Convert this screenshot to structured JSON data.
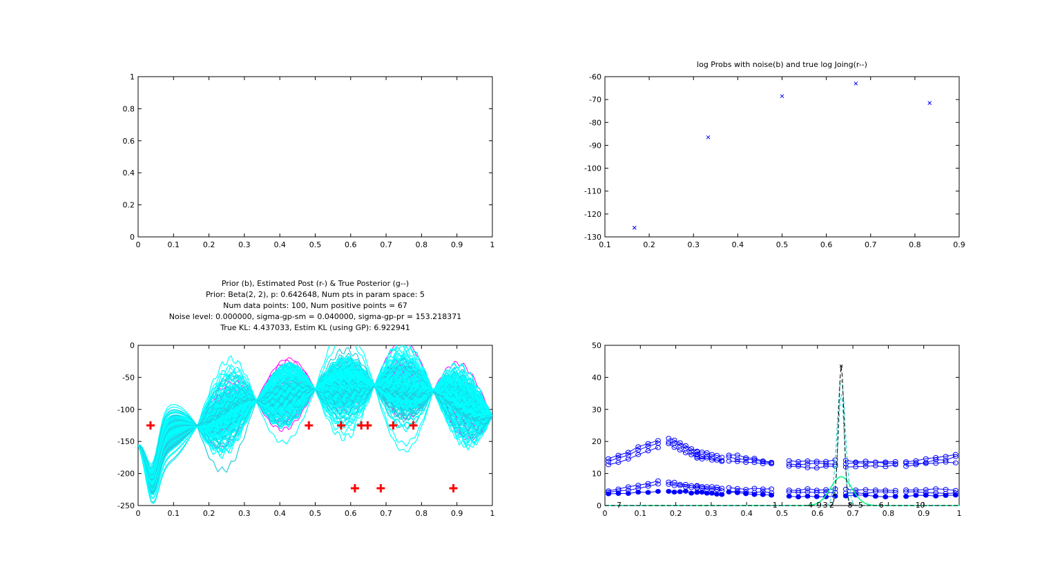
{
  "chart_data": [
    {
      "id": "top-left",
      "type": "line",
      "title": "",
      "xlim": [
        0,
        1
      ],
      "ylim": [
        0,
        1
      ],
      "xticks": [
        0,
        0.1,
        0.2,
        0.3,
        0.4,
        0.5,
        0.6,
        0.7,
        0.8,
        0.9,
        1
      ],
      "yticks": [
        0,
        0.2,
        0.4,
        0.6,
        0.8,
        1
      ],
      "xtick_labels": [
        "0",
        "0.1",
        "0.2",
        "0.3",
        "0.4",
        "0.5",
        "0.6",
        "0.7",
        "0.8",
        "0.9",
        "1"
      ],
      "ytick_labels": [
        "0",
        "0.2",
        "0.4",
        "0.6",
        "0.8",
        "1"
      ],
      "series": []
    },
    {
      "id": "top-right",
      "type": "scatter",
      "title": "log Probs with noise(b) and true log Joing(r--)",
      "xlim": [
        0.1,
        0.9
      ],
      "ylim": [
        -130,
        -60
      ],
      "xticks": [
        0.1,
        0.2,
        0.3,
        0.4,
        0.5,
        0.6,
        0.7,
        0.8,
        0.9
      ],
      "yticks": [
        -130,
        -120,
        -110,
        -100,
        -90,
        -80,
        -70,
        -60
      ],
      "xtick_labels": [
        "0.1",
        "0.2",
        "0.3",
        "0.4",
        "0.5",
        "0.6",
        "0.7",
        "0.8",
        "0.9"
      ],
      "ytick_labels": [
        "-130",
        "-120",
        "-110",
        "-100",
        "-90",
        "-80",
        "-70",
        "-60"
      ],
      "series": [
        {
          "marker": "x",
          "color": "#0000ff",
          "x": [
            0.1667,
            0.3333,
            0.5,
            0.6667,
            0.8333
          ],
          "y": [
            -126,
            -86.5,
            -68.5,
            -63,
            -71.5
          ]
        },
        {
          "marker": "dot",
          "color": "#ff0000",
          "x": [
            0.1667,
            0.3333,
            0.5,
            0.6667,
            0.8333
          ],
          "y": [
            -126,
            -86.5,
            -68.5,
            -63,
            -71.5
          ]
        }
      ]
    },
    {
      "id": "bottom-left",
      "type": "line",
      "title_lines": [
        "Prior (b), Estimated Post (r-) & True Posterior (g--)",
        "Prior: Beta(2, 2), p: 0.642648, Num pts in param space: 5",
        "Num data points: 100, Num positive points = 67",
        "Noise level: 0.000000, sigma-gp-sm = 0.040000, sigma-gp-pr = 153.218371",
        "True KL: 4.437033, Estim KL (using GP): 6.922941"
      ],
      "xlim": [
        0,
        1
      ],
      "ylim": [
        -250,
        0
      ],
      "xticks": [
        0,
        0.1,
        0.2,
        0.3,
        0.4,
        0.5,
        0.6,
        0.7,
        0.8,
        0.9,
        1
      ],
      "yticks": [
        -250,
        -200,
        -150,
        -100,
        -50,
        0
      ],
      "xtick_labels": [
        "0",
        "0.1",
        "0.2",
        "0.3",
        "0.4",
        "0.5",
        "0.6",
        "0.7",
        "0.8",
        "0.9",
        "1"
      ],
      "ytick_labels": [
        "-250",
        "-200",
        "-150",
        "-100",
        "-50",
        "0"
      ],
      "knots": [
        {
          "x": 0.0,
          "y": -150
        },
        {
          "x": 0.1667,
          "y": -126
        },
        {
          "x": 0.3333,
          "y": -86.5
        },
        {
          "x": 0.5,
          "y": -68.5
        },
        {
          "x": 0.6667,
          "y": -63
        },
        {
          "x": 0.8333,
          "y": -71.5
        },
        {
          "x": 1.0,
          "y": -110
        }
      ],
      "band_colors": {
        "magenta": "#ff00ff",
        "cyan": "#00ffff",
        "cyan_edge": "#22ccdd"
      },
      "plus_points": {
        "color": "#ff0000",
        "x": [
          0.035,
          0.482,
          0.573,
          0.63,
          0.648,
          0.72,
          0.777,
          0.612,
          0.685,
          0.89
        ],
        "y": [
          -125,
          -125,
          -125,
          -125,
          -125,
          -125,
          -125,
          -223,
          -223,
          -223
        ]
      }
    },
    {
      "id": "bottom-right",
      "type": "line",
      "title": "",
      "xlim": [
        0,
        1
      ],
      "ylim": [
        0,
        50
      ],
      "xticks": [
        0,
        0.1,
        0.2,
        0.3,
        0.4,
        0.5,
        0.6,
        0.7,
        0.8,
        0.9,
        1
      ],
      "yticks": [
        0,
        10,
        20,
        30,
        40,
        50
      ],
      "xtick_labels": [
        "0",
        "0.1",
        "0.2",
        "0.3",
        "0.4",
        "0.5",
        "0.6",
        "0.7",
        "0.8",
        "0.9",
        "1"
      ],
      "ytick_labels": [
        "0",
        "10",
        "20",
        "30",
        "40",
        "50"
      ],
      "groups": [
        {
          "x0": 0.01,
          "x1": 0.15,
          "lines": [
            [
              14.5,
              20.5
            ],
            [
              13.5,
              19.5
            ],
            [
              12.5,
              18
            ],
            [
              4.5,
              7.5
            ],
            [
              4.0,
              6.5
            ],
            [
              3.5,
              4.5
            ]
          ]
        },
        {
          "x0": 0.18,
          "x1": 0.26,
          "lines": [
            [
              21,
              17
            ],
            [
              20,
              16
            ],
            [
              19,
              15
            ],
            [
              7.5,
              6
            ],
            [
              6.5,
              5.5
            ],
            [
              4.5,
              4
            ]
          ]
        },
        {
          "x0": 0.26,
          "x1": 0.33,
          "lines": [
            [
              17,
              15
            ],
            [
              16,
              14
            ],
            [
              15,
              14
            ],
            [
              6,
              5.5
            ],
            [
              5.5,
              4.5
            ],
            [
              4,
              3.5
            ]
          ]
        },
        {
          "x0": 0.35,
          "x1": 0.47,
          "lines": [
            [
              16,
              13.5
            ],
            [
              15,
              13.5
            ],
            [
              14,
              13
            ],
            [
              5.5,
              5
            ],
            [
              4.5,
              4
            ],
            [
              4,
              3
            ]
          ]
        },
        {
          "x0": 0.52,
          "x1": 0.65,
          "lines": [
            [
              14,
              14
            ],
            [
              13,
              13
            ],
            [
              12,
              12
            ],
            [
              5,
              5
            ],
            [
              4,
              4
            ],
            [
              3,
              3
            ]
          ]
        },
        {
          "x0": 0.68,
          "x1": 0.82,
          "lines": [
            [
              13,
              14
            ],
            [
              14,
              13
            ],
            [
              12,
              12.5
            ],
            [
              5,
              5
            ],
            [
              4,
              4
            ],
            [
              3,
              3
            ]
          ]
        },
        {
          "x0": 0.85,
          "x1": 0.99,
          "lines": [
            [
              13.5,
              16
            ],
            [
              12.5,
              15
            ],
            [
              13,
              13.5
            ],
            [
              5,
              5
            ],
            [
              4,
              4
            ],
            [
              3,
              3
            ]
          ]
        }
      ],
      "peak": {
        "x": 0.667,
        "true_sigma": 0.008,
        "true_height": 43.5,
        "est_sigma": 0.03,
        "est_height": 9
      },
      "line_colors": {
        "circles": "#0000ff",
        "peak": "#000000",
        "estimate": "#00ff80",
        "cyan": "#33cccc"
      },
      "index_labels": [
        {
          "x": 0.04,
          "text": "7"
        },
        {
          "x": 0.48,
          "text": "1"
        },
        {
          "x": 0.58,
          "text": "4"
        },
        {
          "x": 0.605,
          "text": "9"
        },
        {
          "x": 0.622,
          "text": "3"
        },
        {
          "x": 0.64,
          "text": "2"
        },
        {
          "x": 0.692,
          "text": "8"
        },
        {
          "x": 0.722,
          "text": "5"
        },
        {
          "x": 0.78,
          "text": "6"
        },
        {
          "x": 0.89,
          "text": "10"
        }
      ]
    }
  ]
}
